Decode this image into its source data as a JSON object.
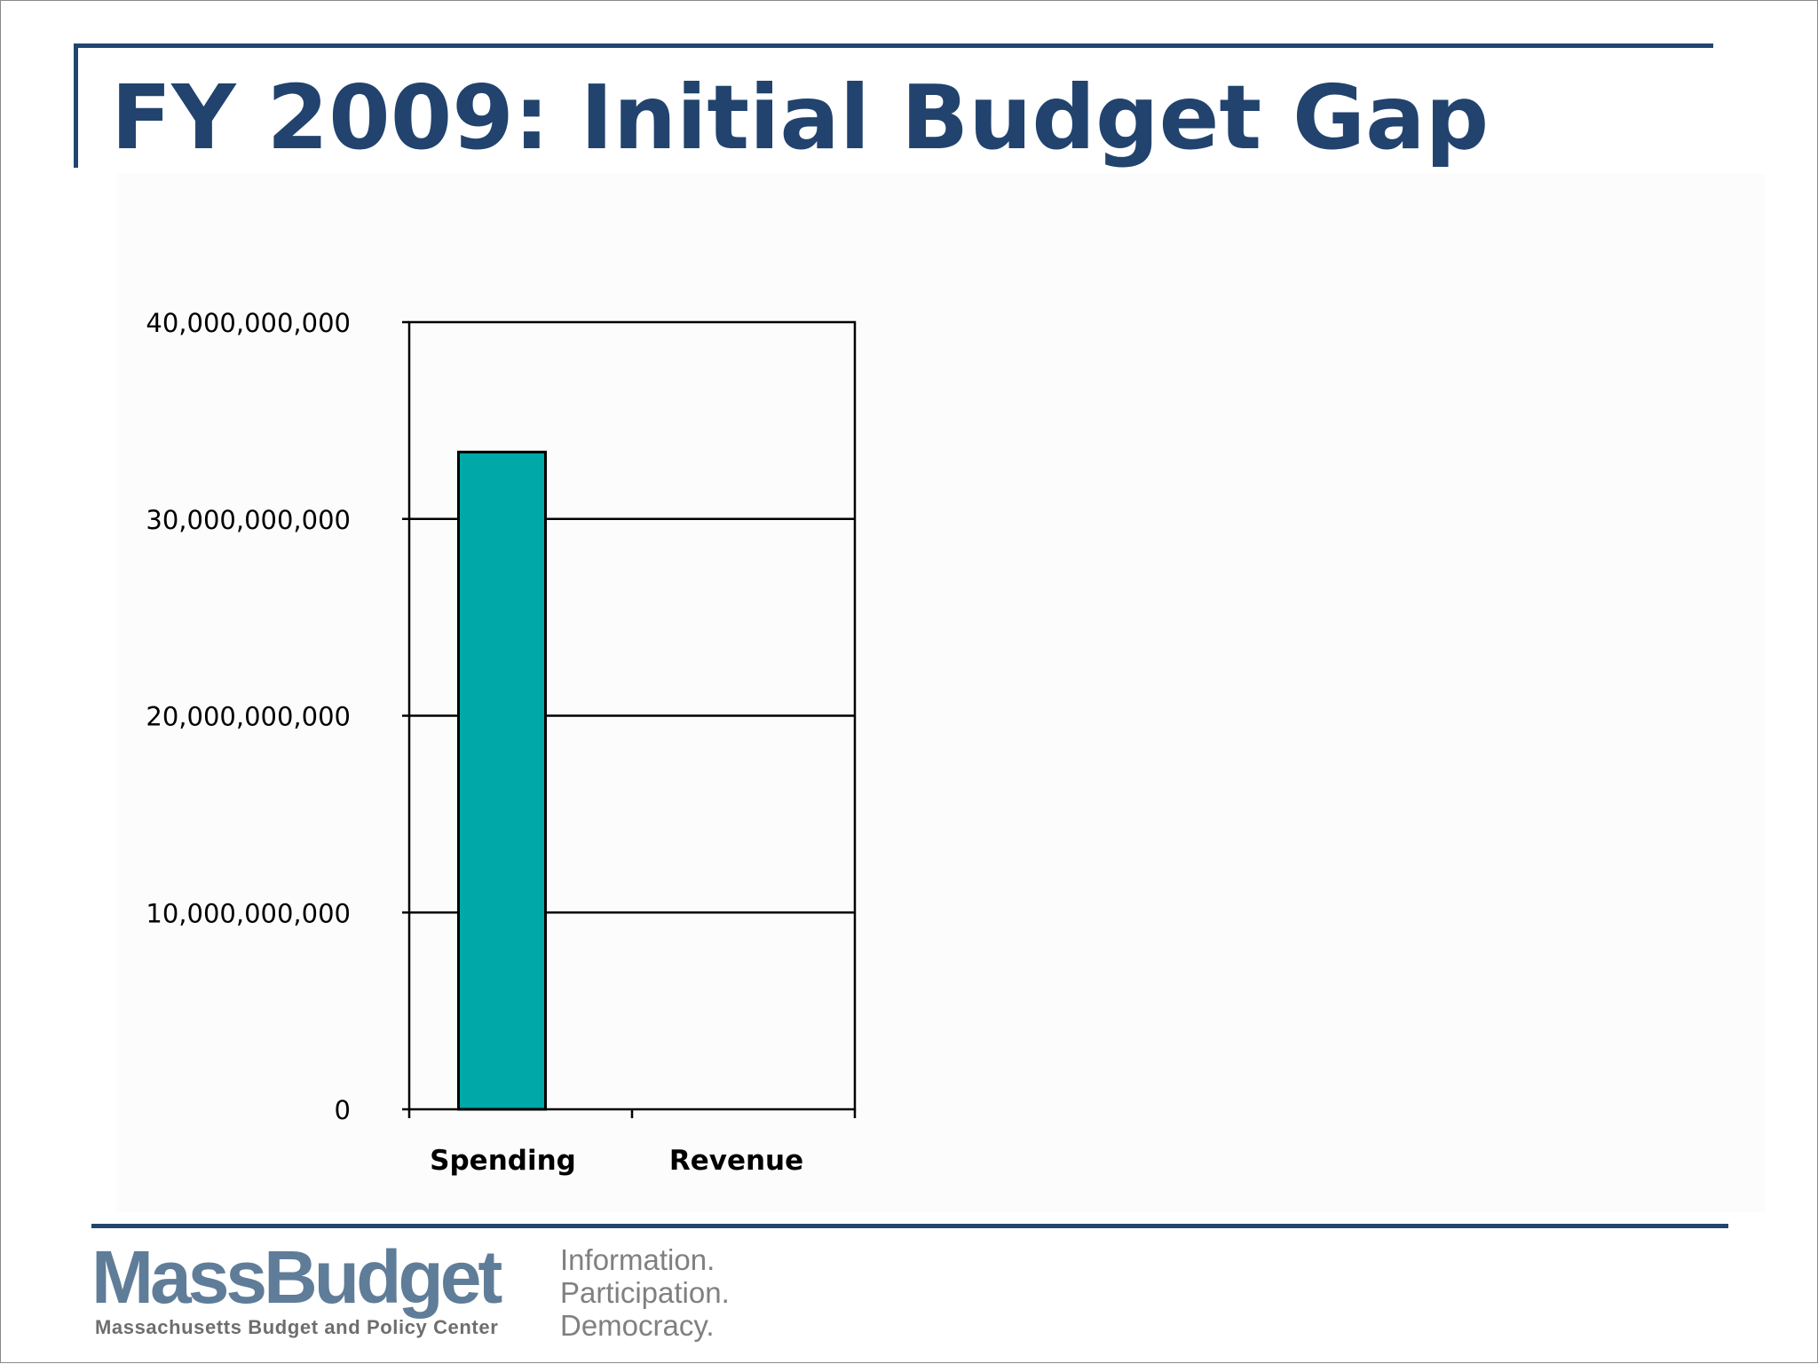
{
  "slide": {
    "title": "FY 2009: Initial Budget Gap"
  },
  "chart_data": {
    "type": "bar",
    "categories": [
      "Spending",
      "Revenue"
    ],
    "values": [
      33400000000,
      0
    ],
    "ylim": [
      0,
      40000000000
    ],
    "yticks": [
      0,
      10000000000,
      20000000000,
      30000000000,
      40000000000
    ],
    "ytick_labels": [
      "0",
      "10,000,000,000",
      "20,000,000,000",
      "30,000,000,000",
      "40,000,000,000"
    ],
    "grid": true,
    "legend": "none",
    "bar_color": "#00a8a8"
  },
  "footer": {
    "logo": "MassBudget",
    "org_name": "Massachusetts Budget and Policy Center",
    "tagline": [
      "Information.",
      "Participation.",
      "Democracy."
    ]
  }
}
